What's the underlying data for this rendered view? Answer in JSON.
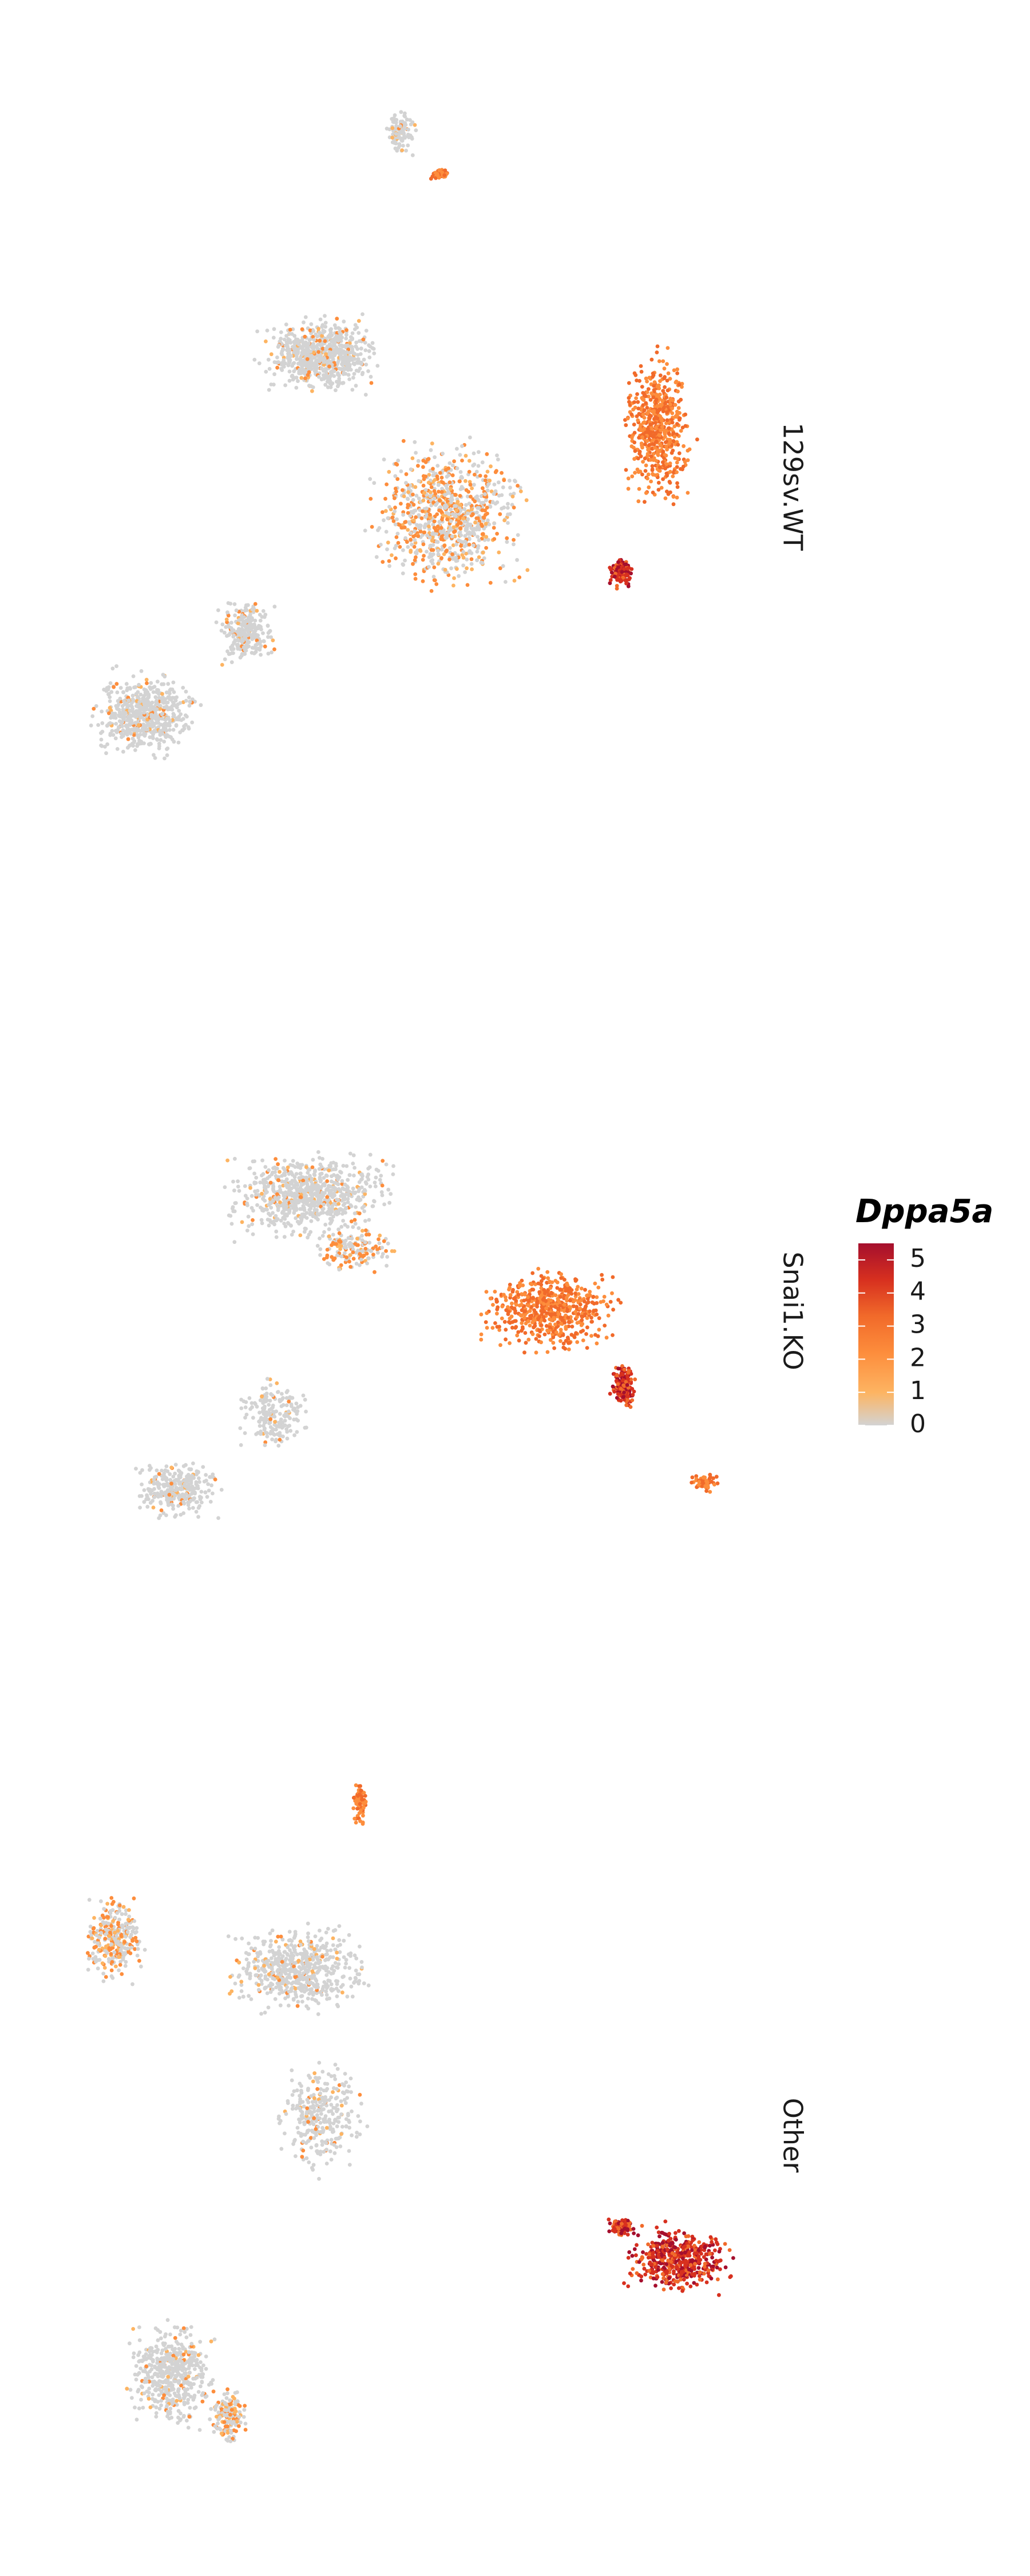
{
  "chart_data": {
    "type": "scatter",
    "plot_kind": "feature-expression embedding (faceted)",
    "color_feature": "Dppa5a",
    "facet_direction": "rows, labels on right (rotated)",
    "axes": "hidden",
    "grid": false,
    "legend_placement": "right",
    "legend": {
      "title": "Dppa5a",
      "ticks": [
        "0",
        "1",
        "2",
        "3",
        "4",
        "5"
      ],
      "range": [
        0,
        5.5
      ],
      "colors": [
        "#d3d3d3",
        "#fdb462",
        "#fd8d3c",
        "#f16a2a",
        "#d7301f",
        "#a50f2d"
      ]
    },
    "facets": [
      {
        "label": "129sv.WT",
        "expression_summary": "high in right arm and tip (4-5), moderate (1-2) in central body, mostly 0 in left lobes"
      },
      {
        "label": "Snai1.KO",
        "expression_summary": "high (3-5) in right arm, moderate in center, scattered low values in left"
      },
      {
        "label": "Other",
        "expression_summary": "very high (4-5) in isolated right cluster, moderate in small top/left patches, rest 0"
      }
    ]
  }
}
